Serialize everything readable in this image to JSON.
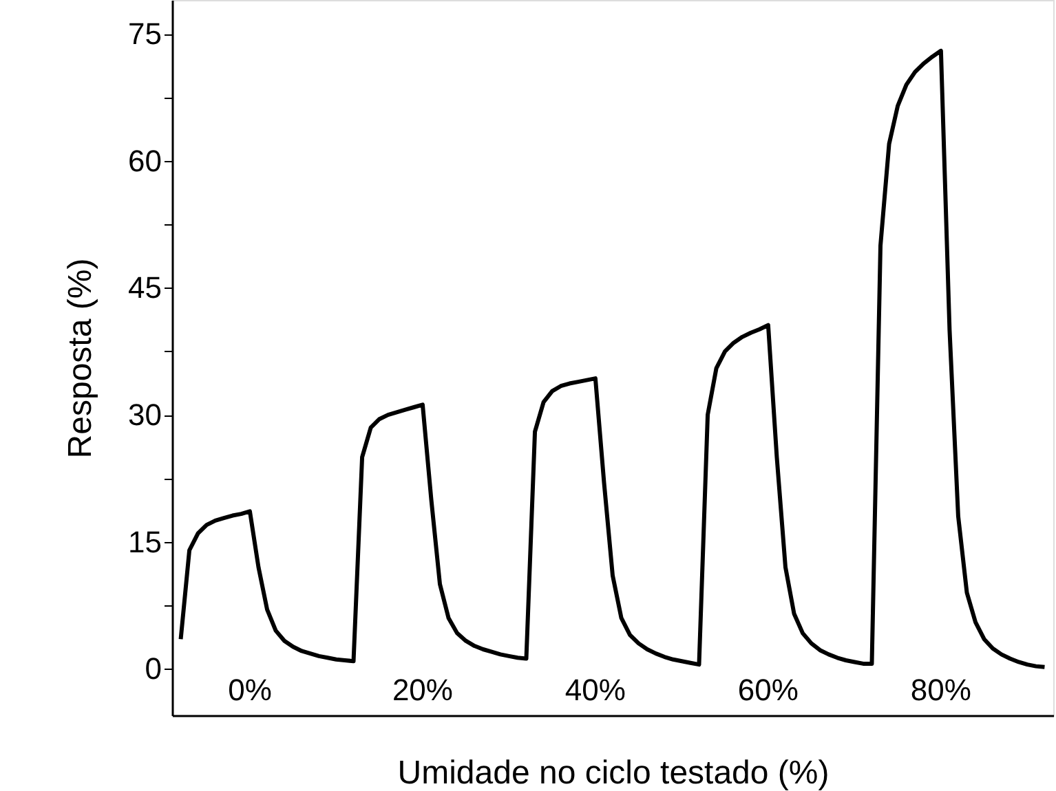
{
  "chart_data": {
    "type": "line",
    "xlabel": "Umidade no ciclo testado (%)",
    "ylabel": "Resposta (%)",
    "categories": [
      null,
      null,
      null,
      null,
      null,
      null,
      null,
      null,
      null,
      null,
      null,
      null,
      null,
      null,
      null,
      null,
      null,
      null,
      null,
      null,
      null,
      null,
      null,
      null,
      null,
      null,
      null,
      null,
      null,
      null,
      null,
      null,
      null,
      null,
      null,
      null,
      null,
      null,
      null,
      null,
      null,
      null,
      null,
      null,
      null,
      null,
      null,
      null,
      null,
      null,
      null,
      null,
      null,
      null,
      null,
      null,
      null,
      null,
      null,
      null,
      null,
      null,
      null,
      null,
      null,
      null,
      null,
      null,
      null,
      null,
      null,
      null,
      null,
      null,
      null,
      null,
      null,
      null,
      null,
      null,
      null,
      null,
      null,
      null,
      null,
      null,
      null,
      null,
      null,
      null,
      null,
      null,
      null,
      null,
      null,
      null,
      null,
      null,
      null,
      null,
      null
    ],
    "series": [
      {
        "color": "#000000",
        "values": [
          3.5,
          14,
          16,
          17,
          17.5,
          17.8,
          18.1,
          18.3,
          18.6,
          12,
          7,
          4.5,
          3.3,
          2.6,
          2.1,
          1.8,
          1.5,
          1.3,
          1.1,
          1.0,
          0.9,
          25,
          28.5,
          29.5,
          30,
          30.3,
          30.6,
          30.9,
          31.2,
          20,
          10,
          6,
          4.2,
          3.3,
          2.7,
          2.3,
          2.0,
          1.7,
          1.5,
          1.3,
          1.2,
          28,
          31.5,
          32.8,
          33.4,
          33.7,
          33.9,
          34.1,
          34.3,
          22,
          11,
          6,
          4,
          3,
          2.3,
          1.8,
          1.4,
          1.1,
          0.9,
          0.7,
          0.5,
          30,
          35.5,
          37.5,
          38.5,
          39.2,
          39.7,
          40.1,
          40.6,
          25,
          12,
          6.5,
          4.2,
          3,
          2.2,
          1.7,
          1.3,
          1.0,
          0.8,
          0.6,
          0.6,
          50,
          62,
          66.5,
          69,
          70.5,
          71.5,
          72.3,
          73,
          40,
          18,
          9,
          5.5,
          3.5,
          2.4,
          1.7,
          1.2,
          0.8,
          0.5,
          0.3,
          0.2
        ]
      }
    ],
    "annotations": [
      "0%",
      "20%",
      "40%",
      "60%",
      "80%"
    ],
    "ylim": [
      -5.5,
      79
    ],
    "yticks": [
      0,
      {
        "value": 7.5,
        "label": null
      },
      15,
      {
        "value": 22.5,
        "label": null
      },
      30,
      {
        "value": 37.5,
        "label": null
      },
      45,
      {
        "value": 52.5,
        "label": null
      },
      60,
      {
        "value": 67.5,
        "label": null
      },
      75
    ],
    "tick_labels": "y",
    "grid": false,
    "marker": "none",
    "line_style": "solid"
  }
}
